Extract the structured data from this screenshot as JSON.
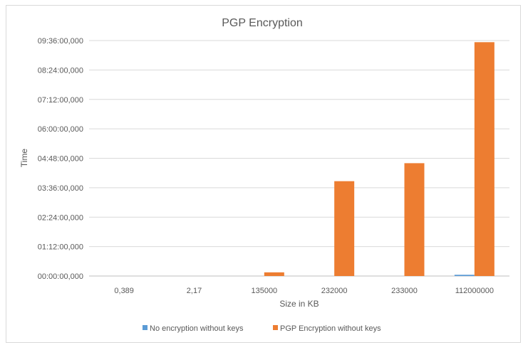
{
  "chart_data": {
    "type": "bar",
    "title": "PGP Encryption",
    "xlabel": "Size in KB",
    "ylabel": "Time",
    "categories": [
      "0,389",
      "2,17",
      "135000",
      "232000",
      "233000",
      "112000000"
    ],
    "y_ticks": [
      "00:00:00,000",
      "01:12:00,000",
      "02:24:00,000",
      "03:36:00,000",
      "04:48:00,000",
      "06:00:00,000",
      "07:12:00,000",
      "08:24:00,000",
      "09:36:00,000"
    ],
    "y_unit": "minutes",
    "ylim": [
      0,
      576
    ],
    "grid": true,
    "legend_position": "bottom",
    "series": [
      {
        "name": "No encryption without keys",
        "color": "#5b9bd5",
        "values": [
          0,
          0,
          0,
          0,
          0,
          3
        ]
      },
      {
        "name": "PGP Encryption without keys",
        "color": "#ed7d31",
        "values": [
          0,
          0,
          9,
          232,
          276,
          572
        ]
      }
    ]
  }
}
